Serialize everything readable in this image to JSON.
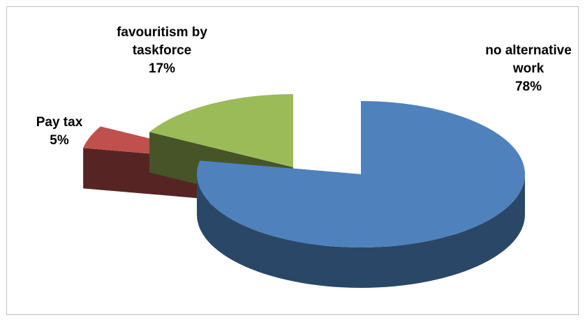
{
  "chart_data": {
    "type": "pie3d",
    "categories": [
      "no alternative work",
      "Pay tax",
      "favouritism by taskforce"
    ],
    "values": [
      78,
      5,
      17
    ],
    "value_labels": [
      "78%",
      "5%",
      "17%"
    ],
    "colors": [
      "#4f81bd",
      "#c0504d",
      "#9bbb59"
    ]
  }
}
